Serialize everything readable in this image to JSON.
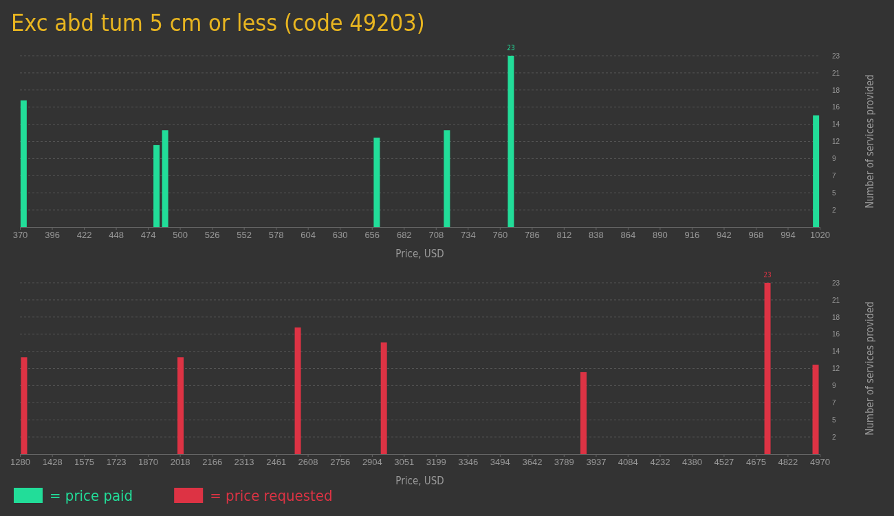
{
  "chart_data": [
    {
      "type": "bar",
      "title": "Exc abd tum 5 cm or less (code 49203)",
      "xlabel": "Price, USD",
      "ylabel": "Number of services provided",
      "x": [
        373,
        481,
        488,
        660,
        717,
        769,
        1017
      ],
      "series": [
        {
          "name": "= price paid",
          "color": "#22dd99",
          "values": [
            17,
            11,
            13,
            12,
            13,
            23,
            15
          ],
          "value_labels": [
            null,
            null,
            null,
            null,
            null,
            "23",
            null
          ]
        }
      ],
      "xlim": [
        370,
        1020
      ],
      "xticks": [
        370,
        396,
        422,
        448,
        474,
        500,
        526,
        552,
        578,
        604,
        630,
        656,
        682,
        708,
        734,
        760,
        786,
        812,
        838,
        864,
        890,
        916,
        942,
        968,
        994,
        1020
      ],
      "ylim": [
        0,
        23
      ],
      "yticks": [
        {
          "value": 2.3,
          "label": "2"
        },
        {
          "value": 4.6,
          "label": "5"
        },
        {
          "value": 6.9,
          "label": "7"
        },
        {
          "value": 9.2,
          "label": "9"
        },
        {
          "value": 11.5,
          "label": "12"
        },
        {
          "value": 13.8,
          "label": "14"
        },
        {
          "value": 16.1,
          "label": "16"
        },
        {
          "value": 18.4,
          "label": "18"
        },
        {
          "value": 20.7,
          "label": "21"
        },
        {
          "value": 23,
          "label": "23"
        }
      ],
      "grid": "y",
      "legend": "bottom left"
    },
    {
      "type": "bar",
      "xlabel": "Price, USD",
      "ylabel": "Number of services provided",
      "x": [
        1299,
        2021,
        2562,
        2959,
        3880,
        4729,
        4951
      ],
      "series": [
        {
          "name": "= price requested",
          "color": "#dd3344",
          "values": [
            13,
            13,
            17,
            15,
            11,
            23,
            12
          ],
          "value_labels": [
            null,
            null,
            null,
            null,
            null,
            "23",
            null
          ]
        }
      ],
      "xlim": [
        1280,
        4970
      ],
      "xticks": [
        1280,
        1428,
        1575,
        1723,
        1870,
        2018,
        2166,
        2313,
        2461,
        2608,
        2756,
        2904,
        3051,
        3199,
        3346,
        3494,
        3642,
        3789,
        3937,
        4084,
        4232,
        4380,
        4527,
        4675,
        4822,
        4970
      ],
      "ylim": [
        0,
        23
      ],
      "yticks": [
        {
          "value": 2.3,
          "label": "2"
        },
        {
          "value": 4.6,
          "label": "5"
        },
        {
          "value": 6.9,
          "label": "7"
        },
        {
          "value": 9.2,
          "label": "9"
        },
        {
          "value": 11.5,
          "label": "12"
        },
        {
          "value": 13.8,
          "label": "14"
        },
        {
          "value": 16.1,
          "label": "16"
        },
        {
          "value": 18.4,
          "label": "18"
        },
        {
          "value": 20.7,
          "label": "21"
        },
        {
          "value": 23,
          "label": "23"
        }
      ],
      "grid": "y",
      "legend": "bottom left"
    }
  ]
}
